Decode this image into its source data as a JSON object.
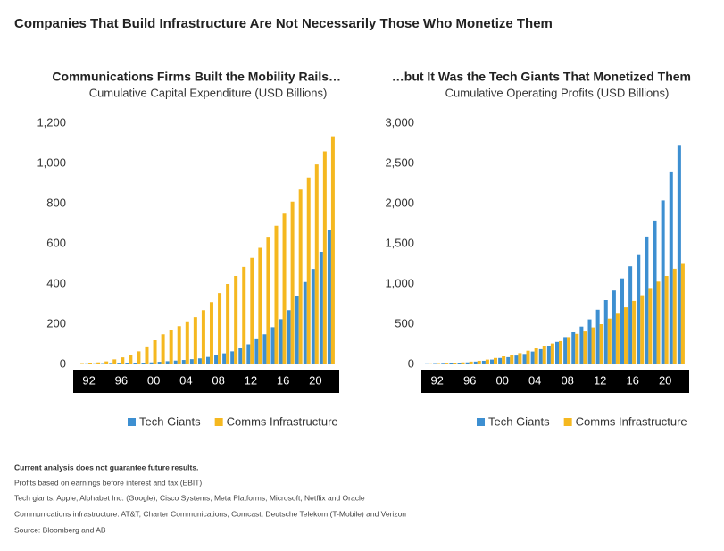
{
  "title": "Companies That Build Infrastructure Are Not Necessarily Those Who Monetize Them",
  "chart_data": [
    {
      "type": "bar",
      "title": "Communications Firms Built the Mobility Rails…",
      "subtitle": "Cumulative Capital Expenditure (USD Billions)",
      "categories": [
        null,
        "92",
        null,
        null,
        null,
        "96",
        null,
        null,
        null,
        "00",
        null,
        null,
        null,
        "04",
        null,
        null,
        null,
        "08",
        null,
        null,
        null,
        "12",
        null,
        null,
        null,
        "16",
        null,
        null,
        null,
        "20",
        null,
        null
      ],
      "series": [
        {
          "name": "Tech Giants",
          "color": "#3d8fd1",
          "values": [
            0,
            1,
            1,
            2,
            3,
            4,
            5,
            6,
            8,
            10,
            13,
            16,
            19,
            22,
            26,
            30,
            37,
            45,
            55,
            65,
            80,
            100,
            125,
            150,
            185,
            225,
            270,
            340,
            410,
            475,
            560,
            670
          ]
        },
        {
          "name": "Comms Infrastructure",
          "color": "#f5b820",
          "values": [
            2,
            5,
            10,
            15,
            25,
            35,
            45,
            65,
            85,
            120,
            150,
            170,
            190,
            210,
            235,
            270,
            310,
            355,
            400,
            440,
            485,
            530,
            580,
            635,
            690,
            750,
            810,
            870,
            930,
            995,
            1060,
            1135
          ]
        }
      ],
      "ylim": [
        0,
        1200
      ],
      "yticks": [
        0,
        200,
        400,
        600,
        800,
        {
          "value": 1000,
          "label": "1,000"
        },
        {
          "value": 1200,
          "label": "1,200"
        }
      ]
    },
    {
      "type": "bar",
      "title": "…but It Was the Tech Giants That Monetized Them",
      "subtitle": "Cumulative Operating Profits (USD Billions)",
      "categories": [
        null,
        "92",
        null,
        null,
        null,
        "96",
        null,
        null,
        null,
        "00",
        null,
        null,
        null,
        "04",
        null,
        null,
        null,
        "08",
        null,
        null,
        null,
        "12",
        null,
        null,
        null,
        "16",
        null,
        null,
        null,
        "20",
        null,
        null
      ],
      "series": [
        {
          "name": "Tech Giants",
          "color": "#3d8fd1",
          "values": [
            2,
            5,
            8,
            12,
            18,
            25,
            35,
            45,
            60,
            80,
            90,
            110,
            130,
            160,
            190,
            230,
            280,
            340,
            400,
            470,
            560,
            680,
            800,
            920,
            1070,
            1220,
            1370,
            1590,
            1790,
            2040,
            2390,
            2730
          ]
        },
        {
          "name": "Comms Infrastructure",
          "color": "#f5b820",
          "values": [
            2,
            5,
            10,
            15,
            25,
            35,
            45,
            60,
            80,
            100,
            120,
            140,
            170,
            200,
            230,
            260,
            290,
            340,
            380,
            410,
            460,
            500,
            570,
            630,
            710,
            790,
            860,
            940,
            1030,
            1100,
            1190,
            1250
          ]
        }
      ],
      "ylim": [
        0,
        3000
      ],
      "yticks": [
        0,
        500,
        {
          "value": 1000,
          "label": "1,000"
        },
        {
          "value": 1500,
          "label": "1,500"
        },
        {
          "value": 2000,
          "label": "2,000"
        },
        {
          "value": 2500,
          "label": "2,500"
        },
        {
          "value": 3000,
          "label": "3,000"
        }
      ]
    }
  ],
  "notes": [
    "Current analysis does not guarantee future results.",
    "Profits based on earnings before interest and tax (EBIT)",
    "Tech giants: Apple, Alphabet Inc. (Google), Cisco Systems, Meta Platforms, Microsoft, Netflix and Oracle",
    "Communications infrastructure: AT&T, Charter Communications, Comcast, Deutsche Telekom (T-Mobile) and Verizon",
    "Source: Bloomberg and AB"
  ]
}
